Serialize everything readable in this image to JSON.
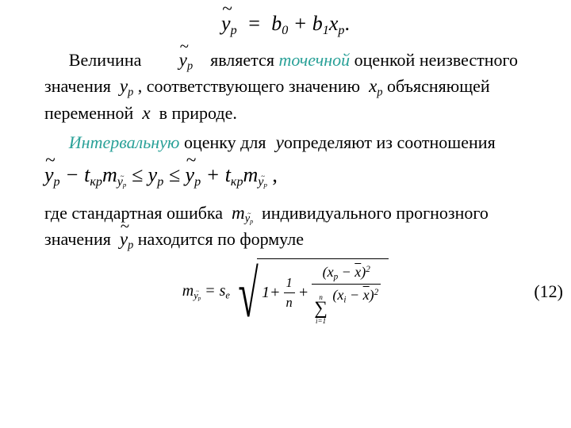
{
  "colors": {
    "teal": "#2aa198",
    "text": "#000000",
    "bg": "#ffffff"
  },
  "fonts": {
    "family": "Times New Roman",
    "body_pt": 22,
    "eq_pt": 26,
    "formula_pt": 20
  },
  "eq1": {
    "lhs_var": "y",
    "lhs_sub": "p",
    "lhs_tilde": true,
    "rhs_parts": [
      "b",
      "0",
      " + ",
      "b",
      "1",
      "x",
      "p",
      "."
    ]
  },
  "para1": {
    "w1": "Величина",
    "sym1_var": "y",
    "sym1_sub": "p",
    "sym1_tilde": true,
    "w2": "является",
    "w3_teal": "точечной",
    "w4": "оценкой неизвестного значения",
    "sym2_var": "y",
    "sym2_sub": "p",
    "w5": ", соответствующего значению",
    "sym3_var": "x",
    "sym3_sub": "p",
    "w6": "объясняющей переменной",
    "sym4_var": "x",
    "w7": "в природе."
  },
  "para2": {
    "w1_teal": "Интервальную",
    "w2": "оценку для",
    "sym_var": "y",
    "w3": "определяют из соотношения"
  },
  "eq2": {
    "text_parts": {
      "y": "y",
      "p": "p",
      "minus": " − ",
      "t": "t",
      "kr": "кр",
      "m": "m",
      "le": " ≤ ",
      "plus": " + ",
      "comma": ","
    }
  },
  "para3": {
    "w1": "где стандартная ошибка",
    "m": "m",
    "w2": "индивидуального прогнозного значения",
    "sym_var": "y",
    "sym_sub": "p",
    "w3": "находится  по формуле"
  },
  "formula": {
    "lhs_m": "m",
    "lhs_sub_y": "y",
    "lhs_sub_p": "p",
    "eq": " = ",
    "s": "s",
    "e": "e",
    "one": "1",
    "plus": " + ",
    "frac1_num": "1",
    "frac1_den": "n",
    "frac2_num_l": "(x",
    "frac2_num_sub": "p",
    "frac2_num_m": " − ",
    "frac2_num_bar": "x",
    "frac2_num_r": ")",
    "frac2_num_sup": "2",
    "sum_top": "n",
    "sum_bot": "i=1",
    "frac2_den_l": "(x",
    "frac2_den_sub": "i",
    "frac2_den_m": " − ",
    "frac2_den_bar": "x",
    "frac2_den_r": ")",
    "frac2_den_sup": "2"
  },
  "eq_number": "(12)"
}
